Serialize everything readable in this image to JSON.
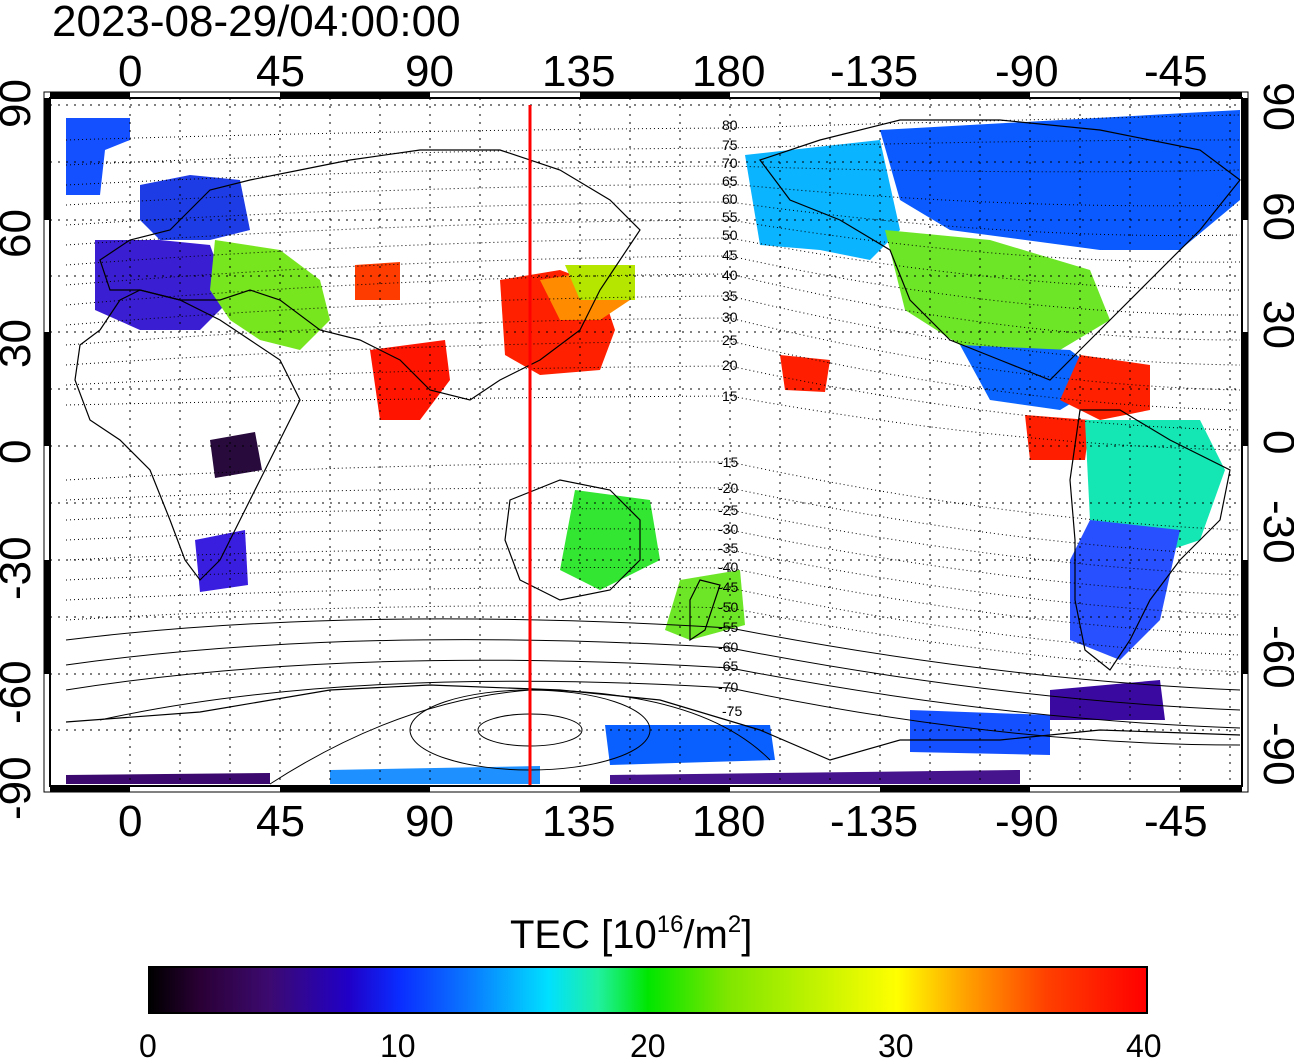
{
  "timestamp": "2023-08-29/04:00:00",
  "lon_ticks": [
    "0",
    "45",
    "90",
    "135",
    "180",
    "-135",
    "-90",
    "-45"
  ],
  "lat_ticks": [
    "90",
    "60",
    "30",
    "0",
    "-30",
    "-60",
    "-90"
  ],
  "contour_labels": [
    "80",
    "75",
    "70",
    "65",
    "60",
    "55",
    "50",
    "45",
    "40",
    "35",
    "30",
    "25",
    "20",
    "15",
    "-15",
    "-20",
    "-25",
    "-30",
    "-35",
    "-40",
    "-45",
    "-50",
    "-55",
    "-60",
    "-65",
    "-70",
    "-75"
  ],
  "colorbar": {
    "title_main": "TEC  [10",
    "title_exp": "16",
    "title_unit": "/m",
    "title_exp2": "2",
    "title_close": "]",
    "ticks": [
      "0",
      "10",
      "20",
      "30",
      "40"
    ],
    "range": [
      0,
      40
    ]
  },
  "colors": {
    "meridian_marker": "#ff0000",
    "low_tec": "#2a0a60",
    "mid_tec": "#00e600",
    "high_tec": "#ff0000"
  },
  "map": {
    "lon_range": [
      -20,
      320
    ],
    "lat_range": [
      -90,
      90
    ],
    "marker_longitude": 120
  }
}
